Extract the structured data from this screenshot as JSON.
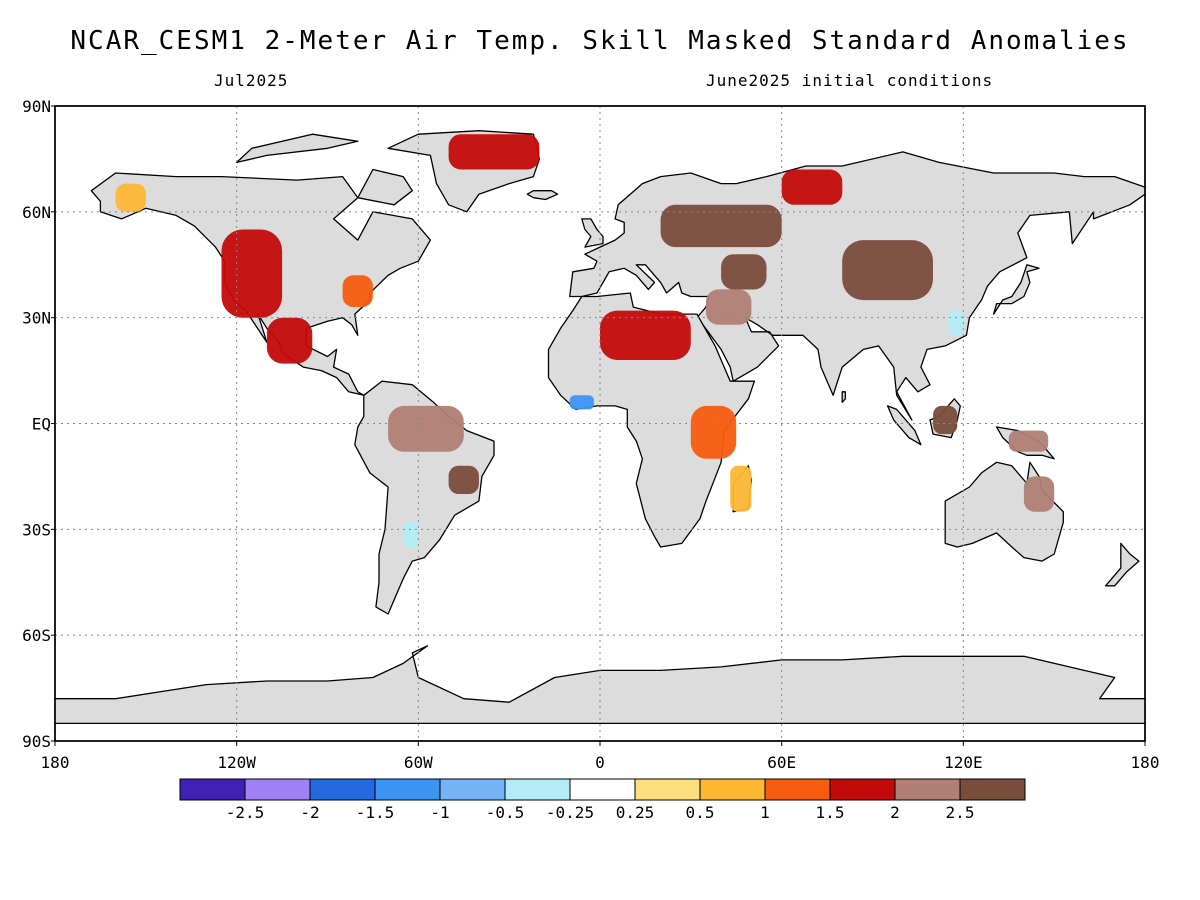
{
  "title": "NCAR_CESM1 2-Meter Air Temp. Skill Masked Standard Anomalies",
  "valid_month": "Jul2025",
  "init_conditions": "June2025 initial conditions",
  "map": {
    "projection": "equirectangular",
    "lon_range": [
      -180,
      180
    ],
    "lat_range": [
      -90,
      90
    ],
    "lat_ticks": [
      "90N",
      "60N",
      "30N",
      "EQ",
      "30S",
      "60S",
      "90S"
    ],
    "lon_ticks": [
      "180",
      "120W",
      "60W",
      "0",
      "60E",
      "120E",
      "180"
    ],
    "land_color": "#dcdcdc",
    "ocean_color": "#ffffff",
    "grid": true
  },
  "colorbar": {
    "colors": [
      "#3f22b4",
      "#a081f5",
      "#2468e2",
      "#3d93f2",
      "#76b4f8",
      "#b3ecf6",
      "#ffffff",
      "#fde07c",
      "#fdb733",
      "#f55c10",
      "#c30a0a",
      "#b08074",
      "#7a4c3c"
    ],
    "labels": [
      "-2.5",
      "-2",
      "-1.5",
      "-1",
      "-0.5",
      "-0.25",
      "0.25",
      "0.5",
      "1",
      "1.5",
      "2",
      "2.5"
    ]
  },
  "chart_data": {
    "type": "heatmap",
    "variable": "2-Meter Air Temp. Skill Masked Standard Anomalies",
    "scale": "standard deviations",
    "regions": [
      {
        "region": "Greenland",
        "lon": [
          -50,
          -20
        ],
        "lat": [
          72,
          82
        ],
        "anomaly": 1.5
      },
      {
        "region": "Western North America",
        "lon": [
          -125,
          -105
        ],
        "lat": [
          30,
          55
        ],
        "anomaly": 1.5
      },
      {
        "region": "Mexico",
        "lon": [
          -110,
          -95
        ],
        "lat": [
          17,
          30
        ],
        "anomaly": 1.5
      },
      {
        "region": "Alaska",
        "lon": [
          -160,
          -150
        ],
        "lat": [
          60,
          68
        ],
        "anomaly": 0.5
      },
      {
        "region": "Eastern North America",
        "lon": [
          -85,
          -75
        ],
        "lat": [
          33,
          42
        ],
        "anomaly": 1.0
      },
      {
        "region": "Amazon",
        "lon": [
          -70,
          -45
        ],
        "lat": [
          -8,
          5
        ],
        "anomaly": 2.0
      },
      {
        "region": "Eastern Brazil",
        "lon": [
          -50,
          -40
        ],
        "lat": [
          -20,
          -12
        ],
        "anomaly": 2.5
      },
      {
        "region": "Northern Argentina",
        "lon": [
          -65,
          -60
        ],
        "lat": [
          -35,
          -28
        ],
        "anomaly": -0.5
      },
      {
        "region": "Sahara",
        "lon": [
          0,
          30
        ],
        "lat": [
          18,
          32
        ],
        "anomaly": 1.5
      },
      {
        "region": "West African coast",
        "lon": [
          -10,
          -2
        ],
        "lat": [
          4,
          8
        ],
        "anomaly": -1.5
      },
      {
        "region": "East Africa",
        "lon": [
          30,
          45
        ],
        "lat": [
          -10,
          5
        ],
        "anomaly": 1.0
      },
      {
        "region": "Madagascar",
        "lon": [
          43,
          50
        ],
        "lat": [
          -25,
          -12
        ],
        "anomaly": 0.75
      },
      {
        "region": "European Russia",
        "lon": [
          20,
          60
        ],
        "lat": [
          50,
          62
        ],
        "anomaly": 2.5
      },
      {
        "region": "Caspian region",
        "lon": [
          40,
          55
        ],
        "lat": [
          38,
          48
        ],
        "anomaly": 2.5
      },
      {
        "region": "Middle East",
        "lon": [
          35,
          50
        ],
        "lat": [
          28,
          38
        ],
        "anomaly": 2.0
      },
      {
        "region": "Central Asia / Mongolia",
        "lon": [
          80,
          110
        ],
        "lat": [
          35,
          52
        ],
        "anomaly": 2.5
      },
      {
        "region": "Siberia north coast",
        "lon": [
          60,
          80
        ],
        "lat": [
          62,
          72
        ],
        "anomaly": 1.5
      },
      {
        "region": "Eastern China",
        "lon": [
          115,
          120
        ],
        "lat": [
          25,
          32
        ],
        "anomaly": -0.5
      },
      {
        "region": "Borneo",
        "lon": [
          110,
          118
        ],
        "lat": [
          -3,
          5
        ],
        "anomaly": 2.5
      },
      {
        "region": "New Guinea",
        "lon": [
          135,
          148
        ],
        "lat": [
          -8,
          -2
        ],
        "anomaly": 2.0
      },
      {
        "region": "Eastern Australia",
        "lon": [
          140,
          150
        ],
        "lat": [
          -25,
          -15
        ],
        "anomaly": 2.0
      }
    ]
  }
}
